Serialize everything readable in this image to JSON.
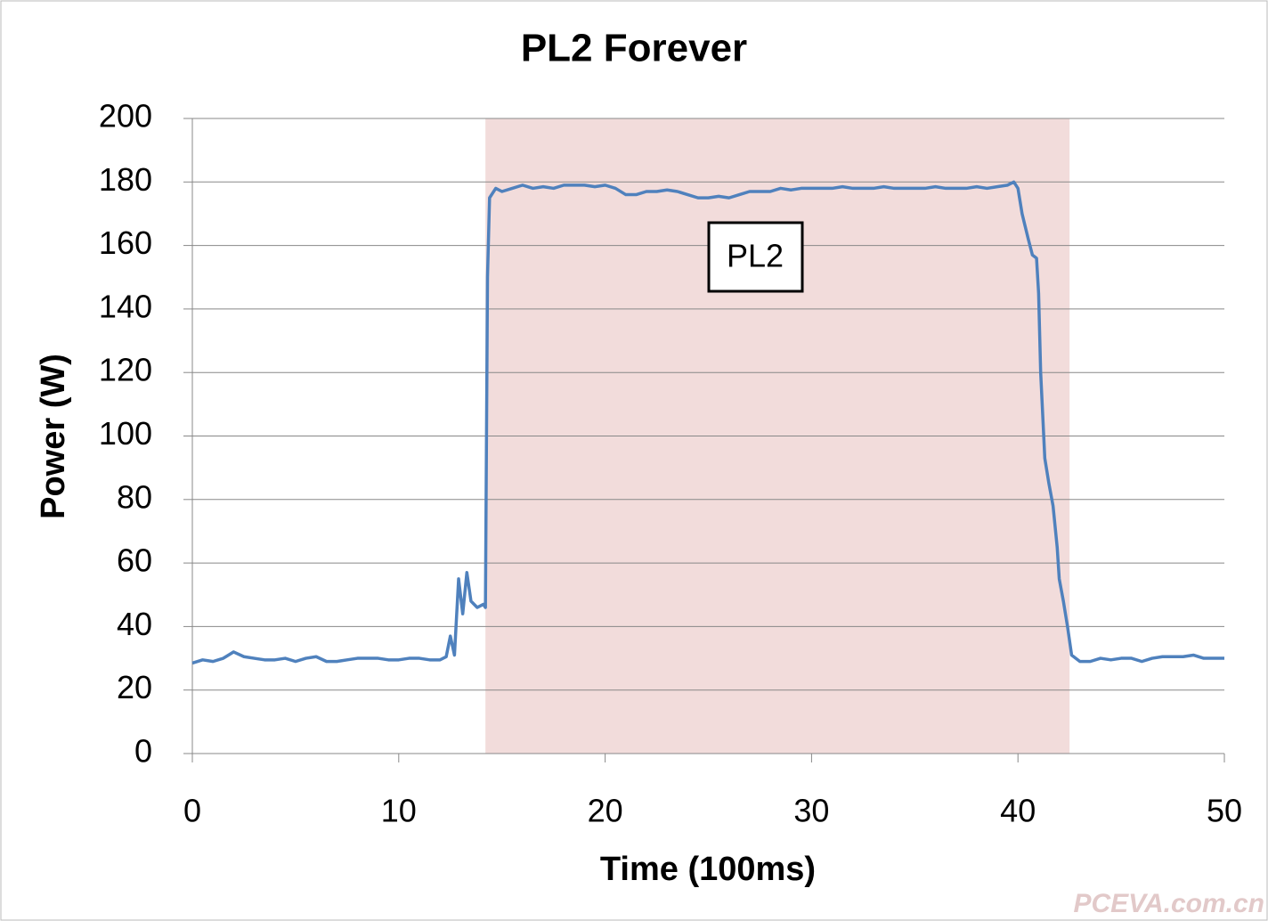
{
  "chart_data": {
    "type": "line",
    "title": "PL2 Forever",
    "x_label": "Time (100ms)",
    "y_label": "Power (W)",
    "annotation": "PL2",
    "watermark": "PCEVA.com.cn",
    "shaded_xrange": [
      14.2,
      42.5
    ],
    "shade_color": "#f2dcdb",
    "xlim": [
      0,
      50
    ],
    "xticks": [
      0,
      10,
      20,
      30,
      40,
      50
    ],
    "ylim": [
      0,
      200
    ],
    "yticks": [
      0,
      20,
      40,
      60,
      80,
      100,
      120,
      140,
      160,
      180,
      200
    ],
    "grid": true,
    "x": [
      0,
      0.5,
      1,
      1.5,
      2,
      2.5,
      3,
      3.5,
      4,
      4.5,
      5,
      5.5,
      6,
      6.5,
      7,
      7.5,
      8,
      8.5,
      9,
      9.5,
      10,
      10.5,
      11,
      11.5,
      12,
      12.3,
      12.5,
      12.7,
      12.9,
      13.1,
      13.3,
      13.5,
      13.8,
      14.1,
      14.2,
      14.3,
      14.4,
      14.7,
      15,
      15.5,
      16,
      16.5,
      17,
      17.5,
      18,
      18.5,
      19,
      19.5,
      20,
      20.5,
      21,
      21.5,
      22,
      22.5,
      23,
      23.5,
      24,
      24.5,
      25,
      25.5,
      26,
      26.5,
      27,
      27.5,
      28,
      28.5,
      29,
      29.5,
      30,
      30.5,
      31,
      31.5,
      32,
      32.5,
      33,
      33.5,
      34,
      34.5,
      35,
      35.5,
      36,
      36.5,
      37,
      37.5,
      38,
      38.5,
      39,
      39.5,
      39.8,
      40,
      40.2,
      40.5,
      40.7,
      40.9,
      41,
      41.1,
      41.3,
      41.5,
      41.7,
      41.9,
      42,
      42.2,
      42.4,
      42.6,
      43,
      43.5,
      44,
      44.5,
      45,
      45.5,
      46,
      46.5,
      47,
      47.5,
      48,
      48.5,
      49,
      49.5,
      50
    ],
    "series": [
      {
        "name": "Power",
        "color": "#4f81bd",
        "values": [
          28.5,
          29.5,
          29,
          30,
          32,
          30.5,
          30,
          29.5,
          29.5,
          30,
          29,
          30,
          30.5,
          29,
          29,
          29.5,
          30,
          30,
          30,
          29.5,
          29.5,
          30,
          30,
          29.5,
          29.5,
          30.5,
          37,
          31,
          55,
          44,
          57,
          48,
          46,
          47,
          46,
          150,
          175,
          178,
          177,
          178,
          179,
          178,
          178.5,
          178,
          179,
          179,
          179,
          178.5,
          179,
          178,
          176,
          176,
          177,
          177,
          177.5,
          177,
          176,
          175,
          175,
          175.5,
          175,
          176,
          177,
          177,
          177,
          178,
          177.5,
          178,
          178,
          178,
          178,
          178.5,
          178,
          178,
          178,
          178.5,
          178,
          178,
          178,
          178,
          178.5,
          178,
          178,
          178,
          178.5,
          178,
          178.5,
          179,
          180,
          178,
          170,
          162,
          157,
          156,
          145,
          120,
          93,
          85,
          78,
          65,
          55,
          48,
          40,
          31,
          29,
          29,
          30,
          29.5,
          30,
          30,
          29,
          30,
          30.5,
          30.5,
          30.5,
          31,
          30,
          30,
          30
        ]
      }
    ]
  }
}
